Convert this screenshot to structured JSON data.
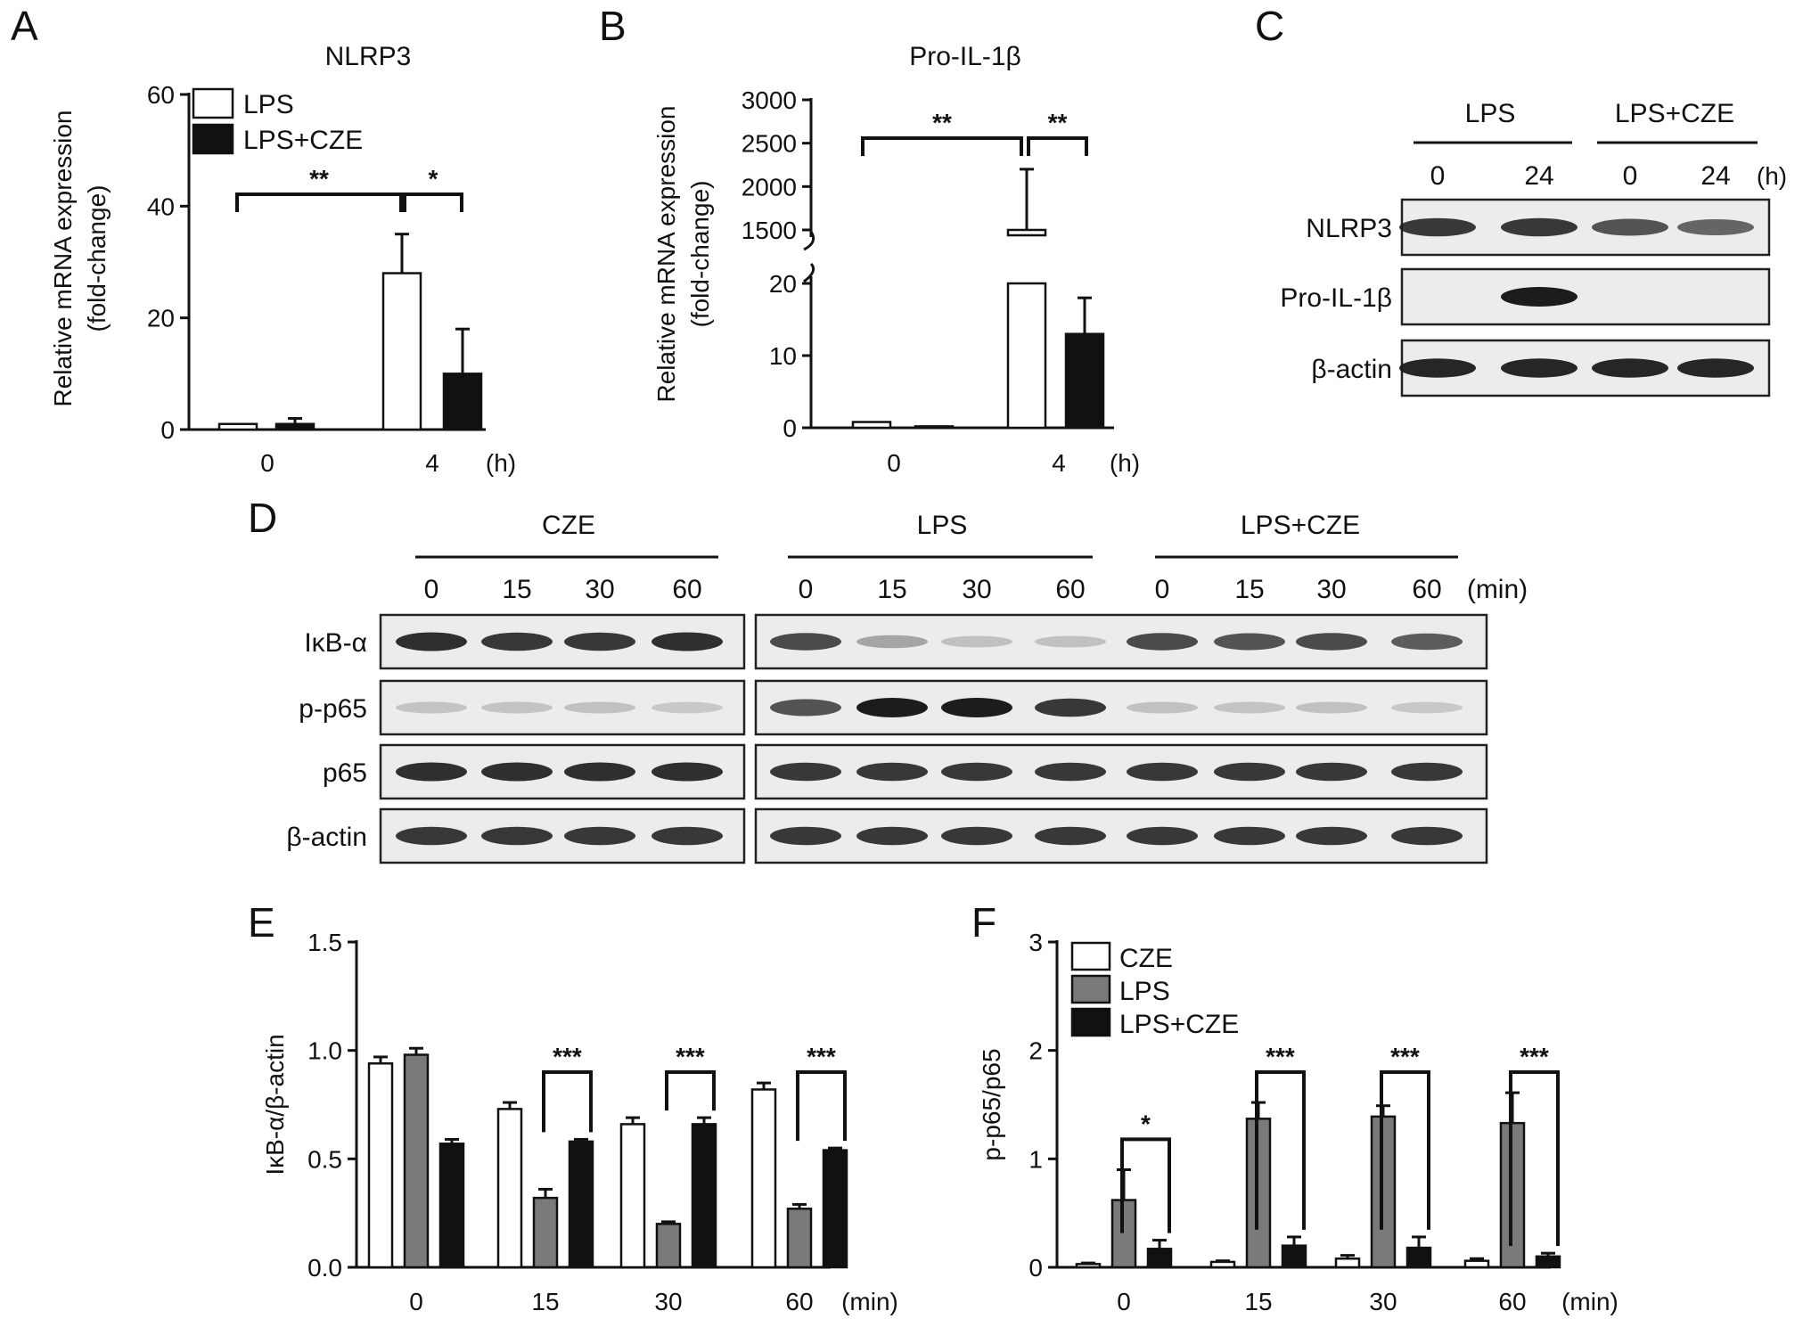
{
  "panels": {
    "A": {
      "letter": "A",
      "title": "NLRP3",
      "ylabel_line1": "Relative mRNA expression",
      "ylabel_line2": "(fold-change)",
      "unit": "(h)",
      "legend": [
        "LPS",
        "LPS+CZE"
      ],
      "sig": [
        "**",
        "*"
      ]
    },
    "B": {
      "letter": "B",
      "title": "Pro-IL-1β",
      "ylabel_line1": "Relative mRNA expression",
      "ylabel_line2": "(fold-change)",
      "unit": "(h)",
      "sig": [
        "**",
        "**"
      ]
    },
    "C": {
      "letter": "C",
      "groups": [
        "LPS",
        "LPS+CZE"
      ],
      "lanes": [
        "0",
        "24",
        "0",
        "24"
      ],
      "unit": "(h)",
      "rows": [
        "NLRP3",
        "Pro-IL-1β",
        "β-actin"
      ]
    },
    "D": {
      "letter": "D",
      "groups": [
        "CZE",
        "LPS",
        "LPS+CZE"
      ],
      "lanes": [
        "0",
        "15",
        "30",
        "60"
      ],
      "unit": "(min)",
      "rows": [
        "IκB-α",
        "p-p65",
        "p65",
        "β-actin"
      ]
    },
    "E": {
      "letter": "E",
      "ylabel": "IκB-α/β-actin",
      "unit": "(min)",
      "sig": [
        "***",
        "***",
        "***"
      ]
    },
    "F": {
      "letter": "F",
      "ylabel": "p-p65/p65",
      "unit": "(min)",
      "legend": [
        "CZE",
        "LPS",
        "LPS+CZE"
      ],
      "sig": [
        "*",
        "***",
        "***",
        "***"
      ]
    }
  },
  "colors": {
    "white_bar": "#ffffff",
    "gray_bar": "#7a7a7a",
    "black_bar": "#111111",
    "blot_bg": "#ececec",
    "band": "#1c1c1c"
  },
  "chart_data": [
    {
      "panel": "A",
      "type": "bar",
      "title": "NLRP3",
      "ylabel": "Relative mRNA expression (fold-change)",
      "categories": [
        "0",
        "4"
      ],
      "series": [
        {
          "name": "LPS",
          "values": [
            1,
            28
          ],
          "errors": [
            0,
            7
          ]
        },
        {
          "name": "LPS+CZE",
          "values": [
            1,
            10
          ],
          "errors": [
            1,
            8
          ]
        }
      ],
      "ylim": [
        0,
        60
      ],
      "yticks": [
        0,
        20,
        40,
        60
      ],
      "significance": [
        {
          "between": "0 vs 4 (LPS)",
          "label": "**"
        },
        {
          "between": "4: LPS vs LPS+CZE",
          "label": "*"
        }
      ]
    },
    {
      "panel": "B",
      "type": "bar",
      "title": "Pro-IL-1β",
      "ylabel": "Relative mRNA expression (fold-change)",
      "categories": [
        "0",
        "4"
      ],
      "series": [
        {
          "name": "LPS",
          "values": [
            0.8,
            1500
          ],
          "errors": [
            0,
            700
          ]
        },
        {
          "name": "LPS+CZE",
          "values": [
            0.2,
            13
          ],
          "errors": [
            0,
            5
          ]
        }
      ],
      "broken_axis": {
        "lower": [
          0,
          20
        ],
        "upper": [
          1500,
          3000
        ]
      },
      "yticks": [
        0,
        10,
        20,
        1500,
        2000,
        2500,
        3000
      ],
      "significance": [
        {
          "between": "0 vs 4 (LPS)",
          "label": "**"
        },
        {
          "between": "4: LPS vs LPS+CZE",
          "label": "**"
        }
      ]
    },
    {
      "panel": "E",
      "type": "bar",
      "ylabel": "IκB-α/β-actin",
      "categories": [
        "0",
        "15",
        "30",
        "60"
      ],
      "series": [
        {
          "name": "CZE",
          "values": [
            0.94,
            0.73,
            0.66,
            0.82
          ],
          "errors": [
            0.03,
            0.03,
            0.03,
            0.03
          ]
        },
        {
          "name": "LPS",
          "values": [
            0.98,
            0.32,
            0.2,
            0.27
          ],
          "errors": [
            0.03,
            0.04,
            0.01,
            0.02
          ]
        },
        {
          "name": "LPS+CZE",
          "values": [
            0.57,
            0.58,
            0.66,
            0.54
          ],
          "errors": [
            0.02,
            0.01,
            0.03,
            0.01
          ]
        }
      ],
      "ylim": [
        0,
        1.5
      ],
      "yticks": [
        0.0,
        0.5,
        1.0,
        1.5
      ],
      "significance": [
        {
          "between": "15: LPS vs LPS+CZE",
          "label": "***"
        },
        {
          "between": "30: LPS vs LPS+CZE",
          "label": "***"
        },
        {
          "between": "60: LPS vs LPS+CZE",
          "label": "***"
        }
      ]
    },
    {
      "panel": "F",
      "type": "bar",
      "ylabel": "p-p65/p65",
      "categories": [
        "0",
        "15",
        "30",
        "60"
      ],
      "series": [
        {
          "name": "CZE",
          "values": [
            0.03,
            0.05,
            0.08,
            0.06
          ],
          "errors": [
            0.01,
            0.01,
            0.03,
            0.02
          ]
        },
        {
          "name": "LPS",
          "values": [
            0.62,
            1.37,
            1.39,
            1.33
          ],
          "errors": [
            0.28,
            0.15,
            0.1,
            0.28
          ]
        },
        {
          "name": "LPS+CZE",
          "values": [
            0.17,
            0.2,
            0.18,
            0.1
          ],
          "errors": [
            0.08,
            0.08,
            0.1,
            0.03
          ]
        }
      ],
      "ylim": [
        0,
        3
      ],
      "yticks": [
        0,
        1,
        2,
        3
      ],
      "significance": [
        {
          "between": "0: LPS vs LPS+CZE",
          "label": "*"
        },
        {
          "between": "15: LPS vs LPS+CZE",
          "label": "***"
        },
        {
          "between": "30: LPS vs LPS+CZE",
          "label": "***"
        },
        {
          "between": "60: LPS vs LPS+CZE",
          "label": "***"
        }
      ]
    }
  ],
  "blots": {
    "C": {
      "NLRP3": [
        0.85,
        0.85,
        0.7,
        0.6
      ],
      "Pro-IL-1b": [
        0,
        1,
        0,
        0
      ],
      "b-actin": [
        0.95,
        0.95,
        0.95,
        0.95
      ]
    },
    "D": {
      "IkB-a": [
        [
          0.9,
          0.85,
          0.85,
          0.9
        ],
        [
          0.75,
          0.25,
          0.1,
          0.1
        ],
        [
          0.75,
          0.7,
          0.75,
          0.65
        ]
      ],
      "p-p65": [
        [
          0.08,
          0.08,
          0.1,
          0.06
        ],
        [
          0.7,
          1,
          1,
          0.85
        ],
        [
          0.1,
          0.08,
          0.1,
          0.06
        ]
      ],
      "p65": [
        [
          0.9,
          0.9,
          0.9,
          0.9
        ],
        [
          0.85,
          0.85,
          0.85,
          0.85
        ],
        [
          0.85,
          0.85,
          0.85,
          0.85
        ]
      ],
      "b-actin": [
        [
          0.85,
          0.85,
          0.85,
          0.85
        ],
        [
          0.85,
          0.85,
          0.85,
          0.85
        ],
        [
          0.85,
          0.85,
          0.85,
          0.85
        ]
      ]
    }
  }
}
